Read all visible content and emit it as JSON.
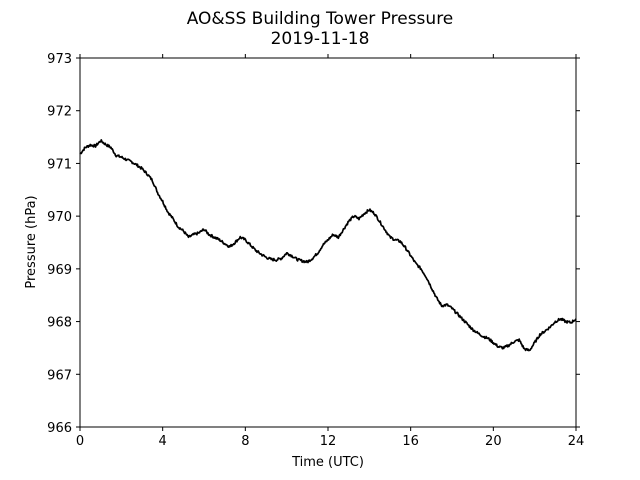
{
  "chart_data": {
    "type": "line",
    "title": "AO&SS Building Tower Pressure",
    "subtitle": "2019-11-18",
    "xlabel": "Time (UTC)",
    "ylabel": "Pressure (hPa)",
    "xlim": [
      0,
      24
    ],
    "ylim": [
      966,
      973
    ],
    "xticks": [
      0,
      4,
      8,
      12,
      16,
      20,
      24
    ],
    "yticks": [
      966,
      967,
      968,
      969,
      970,
      971,
      972,
      973
    ],
    "grid": false,
    "line_color": "#000000",
    "series": [
      {
        "x": [
          0,
          0.25,
          0.5,
          0.75,
          1.0,
          1.25,
          1.5,
          1.75,
          2.0,
          2.25,
          2.5,
          2.75,
          3.0,
          3.25,
          3.5,
          3.75,
          4.0,
          4.25,
          4.5,
          4.75,
          5.0,
          5.25,
          5.5,
          5.75,
          6.0,
          6.25,
          6.5,
          6.75,
          7.0,
          7.25,
          7.5,
          7.75,
          8.0,
          8.25,
          8.5,
          8.75,
          9.0,
          9.25,
          9.5,
          9.75,
          10.0,
          10.25,
          10.5,
          10.75,
          11.0,
          11.25,
          11.5,
          11.75,
          12.0,
          12.25,
          12.5,
          12.75,
          13.0,
          13.25,
          13.5,
          13.75,
          14.0,
          14.25,
          14.5,
          14.75,
          15.0,
          15.25,
          15.5,
          15.75,
          16.0,
          16.25,
          16.5,
          16.75,
          17.0,
          17.25,
          17.5,
          17.75,
          18.0,
          18.25,
          18.5,
          18.75,
          19.0,
          19.25,
          19.5,
          19.75,
          20.0,
          20.25,
          20.5,
          20.75,
          21.0,
          21.25,
          21.5,
          21.75,
          22.0,
          22.25,
          22.5,
          22.75,
          23.0,
          23.25,
          23.5,
          23.75,
          24.0
        ],
        "y": [
          971.18,
          971.3,
          971.35,
          971.33,
          971.43,
          971.36,
          971.3,
          971.15,
          971.12,
          971.07,
          971.03,
          970.97,
          970.9,
          970.8,
          970.68,
          970.45,
          970.28,
          970.08,
          969.95,
          969.8,
          969.72,
          969.6,
          969.65,
          969.68,
          969.75,
          969.65,
          969.6,
          969.55,
          969.48,
          969.42,
          969.5,
          969.6,
          969.55,
          969.45,
          969.35,
          969.28,
          969.22,
          969.18,
          969.17,
          969.2,
          969.3,
          969.25,
          969.18,
          969.15,
          969.13,
          969.2,
          969.3,
          969.45,
          969.55,
          969.65,
          969.6,
          969.75,
          969.9,
          970.0,
          969.95,
          970.05,
          970.12,
          970.05,
          969.9,
          969.75,
          969.6,
          969.55,
          969.52,
          969.4,
          969.25,
          969.1,
          969.0,
          968.85,
          968.65,
          968.45,
          968.3,
          968.32,
          968.25,
          968.15,
          968.05,
          967.95,
          967.85,
          967.78,
          967.72,
          967.68,
          967.6,
          967.52,
          967.5,
          967.55,
          967.62,
          967.65,
          967.48,
          967.45,
          967.6,
          967.75,
          967.82,
          967.9,
          968.0,
          968.05,
          968.0,
          967.98,
          968.05
        ]
      }
    ]
  }
}
